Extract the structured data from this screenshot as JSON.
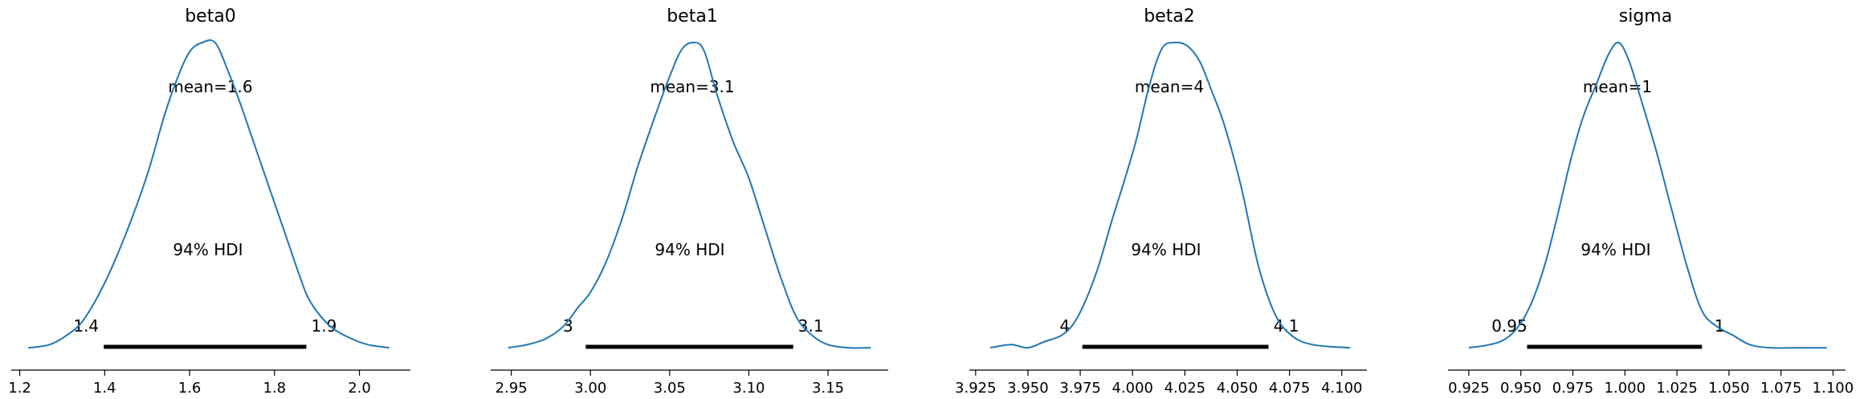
{
  "chart_data": [
    {
      "type": "area",
      "title": "beta0",
      "mean_label": "mean=1.6",
      "hdi_label": "94% HDI",
      "hdi_low_label": "1.4",
      "hdi_high_label": "1.9",
      "hdi": [
        1.398,
        1.875
      ],
      "xlim": [
        1.18,
        2.12
      ],
      "xticks": [
        1.2,
        1.4,
        1.6,
        1.8,
        2.0
      ],
      "xtick_labels": [
        "1.2",
        "1.4",
        "1.6",
        "1.8",
        "2.0"
      ],
      "x": [
        1.22,
        1.27,
        1.31,
        1.35,
        1.4,
        1.45,
        1.5,
        1.54,
        1.57,
        1.6,
        1.63,
        1.66,
        1.69,
        1.72,
        1.75,
        1.79,
        1.83,
        1.86,
        1.88,
        1.91,
        1.94,
        1.98,
        2.02,
        2.07
      ],
      "y": [
        0.01,
        0.02,
        0.05,
        0.1,
        0.22,
        0.38,
        0.57,
        0.76,
        0.88,
        0.97,
        1.0,
        1.0,
        0.91,
        0.8,
        0.68,
        0.52,
        0.36,
        0.24,
        0.17,
        0.11,
        0.07,
        0.04,
        0.02,
        0.01
      ],
      "ylim": [
        0,
        1
      ]
    },
    {
      "type": "area",
      "title": "beta1",
      "mean_label": "mean=3.1",
      "hdi_label": "94% HDI",
      "hdi_low_label": "3",
      "hdi_high_label": "3.1",
      "hdi": [
        2.997,
        3.128
      ],
      "xlim": [
        2.937,
        3.188
      ],
      "xticks": [
        2.95,
        3.0,
        3.05,
        3.1,
        3.15
      ],
      "xtick_labels": [
        "2.95",
        "3.00",
        "3.05",
        "3.10",
        "3.15"
      ],
      "x": [
        2.948,
        2.96,
        2.972,
        2.983,
        2.992,
        3.0,
        3.01,
        3.02,
        3.03,
        3.04,
        3.05,
        3.058,
        3.066,
        3.072,
        3.08,
        3.09,
        3.1,
        3.11,
        3.12,
        3.13,
        3.14,
        3.15,
        3.163,
        3.177
      ],
      "y": [
        0.01,
        0.02,
        0.04,
        0.08,
        0.14,
        0.19,
        0.29,
        0.43,
        0.6,
        0.75,
        0.89,
        0.98,
        1.0,
        0.97,
        0.83,
        0.68,
        0.56,
        0.4,
        0.24,
        0.11,
        0.05,
        0.02,
        0.01,
        0.01
      ],
      "ylim": [
        0,
        1
      ]
    },
    {
      "type": "area",
      "title": "beta2",
      "mean_label": "mean=4",
      "hdi_label": "94% HDI",
      "hdi_low_label": "4",
      "hdi_high_label": "4.1",
      "hdi": [
        3.976,
        4.065
      ],
      "xlim": [
        3.922,
        4.112
      ],
      "xticks": [
        3.925,
        3.95,
        3.975,
        4.0,
        4.025,
        4.05,
        4.075,
        4.1
      ],
      "xtick_labels": [
        "3.925",
        "3.950",
        "3.975",
        "4.000",
        "4.025",
        "4.050",
        "4.075",
        "4.100"
      ],
      "x": [
        3.932,
        3.942,
        3.95,
        3.958,
        3.966,
        3.972,
        3.978,
        3.984,
        3.99,
        3.996,
        4.002,
        4.008,
        4.014,
        4.02,
        4.026,
        4.032,
        4.038,
        4.044,
        4.052,
        4.06,
        4.068,
        4.076,
        4.086,
        4.104
      ],
      "y": [
        0.01,
        0.02,
        0.01,
        0.03,
        0.05,
        0.09,
        0.17,
        0.28,
        0.42,
        0.55,
        0.69,
        0.86,
        0.98,
        1.0,
        0.99,
        0.94,
        0.84,
        0.73,
        0.53,
        0.28,
        0.12,
        0.05,
        0.02,
        0.01
      ],
      "ylim": [
        0,
        1
      ]
    },
    {
      "type": "area",
      "title": "sigma",
      "mean_label": "mean=1",
      "hdi_label": "94% HDI",
      "hdi_low_label": "0.95",
      "hdi_high_label": "1",
      "hdi": [
        0.953,
        1.037
      ],
      "xlim": [
        0.915,
        1.106
      ],
      "xticks": [
        0.925,
        0.95,
        0.975,
        1.0,
        1.025,
        1.05,
        1.075,
        1.1
      ],
      "xtick_labels": [
        "0.925",
        "0.950",
        "0.975",
        "1.000",
        "1.025",
        "1.050",
        "1.075",
        "1.100"
      ],
      "x": [
        0.925,
        0.935,
        0.943,
        0.95,
        0.956,
        0.962,
        0.968,
        0.974,
        0.98,
        0.986,
        0.992,
        0.997,
        1.002,
        1.008,
        1.015,
        1.022,
        1.03,
        1.037,
        1.044,
        1.052,
        1.06,
        1.07,
        1.082,
        1.097
      ],
      "y": [
        0.01,
        0.02,
        0.04,
        0.09,
        0.17,
        0.29,
        0.45,
        0.62,
        0.76,
        0.86,
        0.96,
        1.0,
        0.94,
        0.81,
        0.65,
        0.47,
        0.27,
        0.13,
        0.08,
        0.05,
        0.02,
        0.01,
        0.01,
        0.01
      ],
      "ylim": [
        0,
        1
      ]
    }
  ],
  "colors": {
    "line": "#1f77b4",
    "hdi_bar": "#000000",
    "axis": "#000000"
  }
}
